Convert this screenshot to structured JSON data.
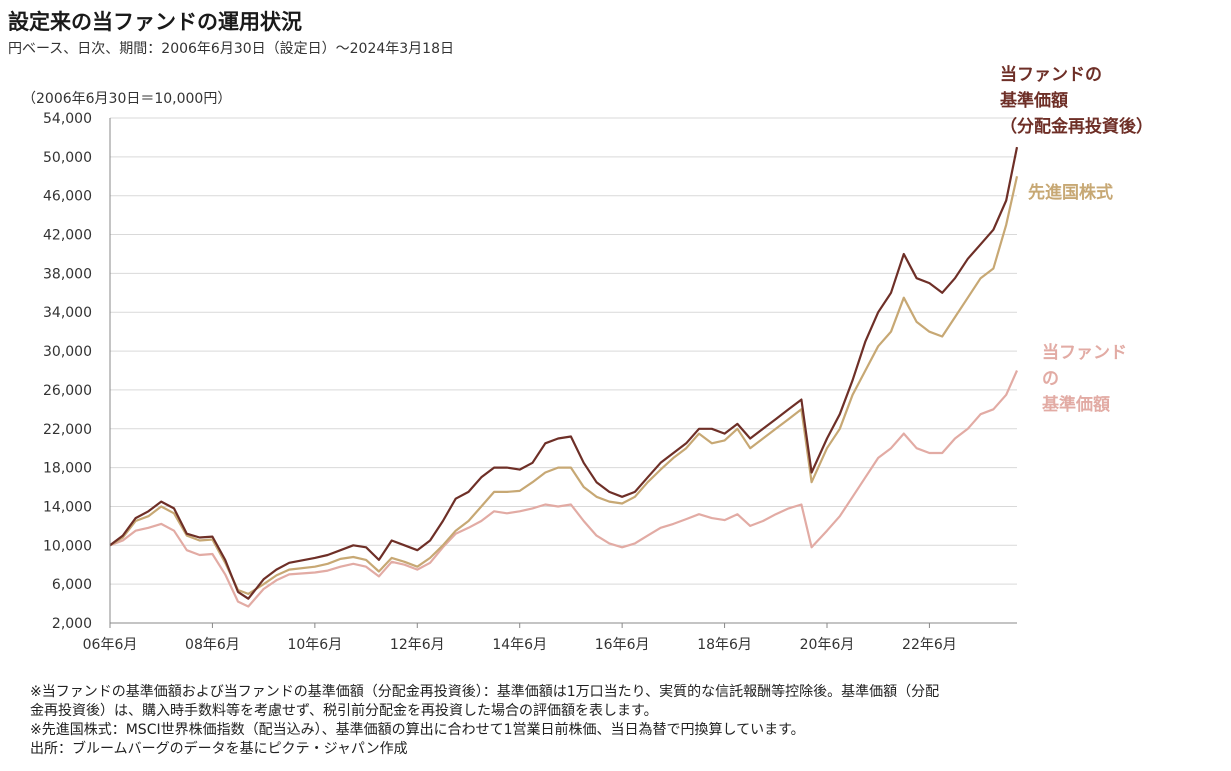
{
  "header": {
    "title": "設定来の当ファンドの運用状況",
    "subtitle": "円ベース、日次、期間：2006年6月30日（設定日）～2024年3月18日",
    "units": "（2006年6月30日＝10,000円）"
  },
  "colors": {
    "reinvested": "#6e2f27",
    "world": "#c7a874",
    "nav": "#e2aba4",
    "grid": "#d9d9d9",
    "axis": "#888888"
  },
  "series_labels": {
    "reinvested": [
      "当ファンドの",
      "基準価額",
      "（分配金再投資後）"
    ],
    "world": [
      "先進国株式"
    ],
    "nav": [
      "当ファンド",
      "の",
      "基準価額"
    ]
  },
  "notes": [
    "※当ファンドの基準価額および当ファンドの基準価額（分配金再投資後）：基準価額は1万口当たり、実質的な信託報酬等控除後。基準価額（分配",
    "金再投資後）は、購入時手数料等を考慮せず、税引前分配金を再投資した場合の評価額を表します。",
    "※先進国株式：MSCI世界株価指数（配当込み）、基準価額の算出に合わせて1営業日前株価、当日為替で円換算しています。",
    "出所：ブルームバーグのデータを基にピクテ・ジャパン作成"
  ],
  "chart_data": {
    "type": "line",
    "xlabel": "",
    "ylabel": "",
    "ylim": [
      2000,
      54000
    ],
    "yticks": [
      2000,
      6000,
      10000,
      14000,
      18000,
      22000,
      26000,
      30000,
      34000,
      38000,
      42000,
      46000,
      50000,
      54000
    ],
    "ytick_labels": [
      "2,000",
      "6,000",
      "10,000",
      "14,000",
      "18,000",
      "22,000",
      "26,000",
      "30,000",
      "34,000",
      "38,000",
      "42,000",
      "46,000",
      "50,000",
      "54,000"
    ],
    "xlim": [
      2006.5,
      2024.21
    ],
    "xticks": [
      2006.5,
      2008.5,
      2010.5,
      2012.5,
      2014.5,
      2016.5,
      2018.5,
      2020.5,
      2022.5
    ],
    "xtick_labels": [
      "06年6月",
      "08年6月",
      "10年6月",
      "12年6月",
      "14年6月",
      "16年6月",
      "18年6月",
      "20年6月",
      "22年6月"
    ],
    "grid": true,
    "x": [
      2006.5,
      2006.75,
      2007.0,
      2007.25,
      2007.5,
      2007.75,
      2008.0,
      2008.25,
      2008.5,
      2008.75,
      2009.0,
      2009.2,
      2009.5,
      2009.75,
      2010.0,
      2010.5,
      2010.75,
      2011.0,
      2011.25,
      2011.5,
      2011.75,
      2012.0,
      2012.25,
      2012.5,
      2012.75,
      2013.0,
      2013.25,
      2013.5,
      2013.75,
      2014.0,
      2014.25,
      2014.5,
      2014.75,
      2015.0,
      2015.25,
      2015.5,
      2015.75,
      2016.0,
      2016.25,
      2016.5,
      2016.75,
      2017.0,
      2017.25,
      2017.5,
      2017.75,
      2018.0,
      2018.25,
      2018.5,
      2018.75,
      2019.0,
      2019.25,
      2019.5,
      2019.75,
      2020.0,
      2020.2,
      2020.5,
      2020.75,
      2021.0,
      2021.25,
      2021.5,
      2021.75,
      2022.0,
      2022.25,
      2022.5,
      2022.75,
      2023.0,
      2023.25,
      2023.5,
      2023.75,
      2024.0,
      2024.21
    ],
    "series": [
      {
        "name": "当ファンドの基準価額（分配金再投資後）",
        "color": "#6e2f27",
        "values": [
          10000,
          11000,
          12800,
          13500,
          14500,
          13800,
          11200,
          10800,
          10900,
          8500,
          5200,
          4500,
          6500,
          7500,
          8200,
          8700,
          9000,
          9500,
          10000,
          9800,
          8500,
          10500,
          10000,
          9500,
          10500,
          12500,
          14800,
          15500,
          17000,
          18000,
          18000,
          17800,
          18500,
          20500,
          21000,
          21200,
          18500,
          16500,
          15500,
          15000,
          15500,
          17000,
          18500,
          19500,
          20500,
          22000,
          22000,
          21500,
          22500,
          21000,
          22000,
          23000,
          24000,
          25000,
          17500,
          21000,
          23500,
          27000,
          31000,
          34000,
          36000,
          40000,
          37500,
          37000,
          36000,
          37500,
          39500,
          41000,
          42500,
          45500,
          51000
        ]
      },
      {
        "name": "先進国株式",
        "color": "#c7a874",
        "values": [
          10000,
          10800,
          12500,
          13000,
          14000,
          13300,
          11000,
          10500,
          10600,
          8200,
          5400,
          5000,
          6000,
          6900,
          7500,
          7800,
          8100,
          8600,
          8800,
          8500,
          7300,
          8700,
          8300,
          7800,
          8700,
          10000,
          11500,
          12500,
          14000,
          15500,
          15500,
          15600,
          16500,
          17500,
          18000,
          18000,
          16000,
          15000,
          14500,
          14300,
          15000,
          16500,
          17800,
          19000,
          20000,
          21500,
          20500,
          20800,
          22000,
          20000,
          21000,
          22000,
          23000,
          24000,
          16500,
          20000,
          22000,
          25500,
          28000,
          30500,
          32000,
          35500,
          33000,
          32000,
          31500,
          33500,
          35500,
          37500,
          38500,
          43000,
          48000
        ]
      },
      {
        "name": "当ファンドの基準価額",
        "color": "#e2aba4",
        "values": [
          10000,
          10500,
          11500,
          11800,
          12200,
          11500,
          9500,
          9000,
          9100,
          7000,
          4200,
          3700,
          5500,
          6400,
          7000,
          7200,
          7400,
          7800,
          8100,
          7800,
          6800,
          8300,
          8000,
          7500,
          8200,
          9800,
          11200,
          11800,
          12500,
          13500,
          13300,
          13500,
          13800,
          14200,
          14000,
          14200,
          12500,
          11000,
          10200,
          9800,
          10200,
          11000,
          11800,
          12200,
          12700,
          13200,
          12800,
          12600,
          13200,
          12000,
          12500,
          13200,
          13800,
          14200,
          9800,
          11500,
          13000,
          15000,
          17000,
          19000,
          20000,
          21500,
          20000,
          19500,
          19500,
          21000,
          22000,
          23500,
          24000,
          25500,
          28000
        ]
      }
    ]
  }
}
